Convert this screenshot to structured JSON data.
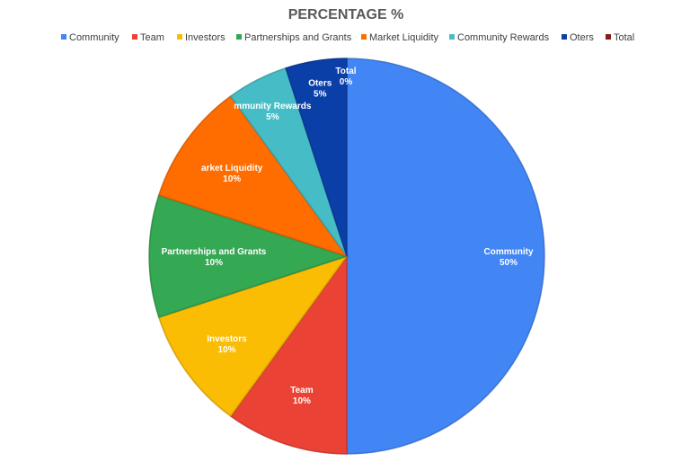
{
  "chart_data": {
    "type": "pie",
    "title": "PERCENTAGE  %",
    "legend_position": "top",
    "categories": [
      "Community",
      "Team",
      "Investors",
      "Partnerships and Grants",
      "Market Liquidity",
      "Community Rewards",
      "Oters",
      "Total"
    ],
    "values": [
      50,
      10,
      10,
      10,
      10,
      5,
      5,
      0
    ],
    "value_labels": [
      "50%",
      "10%",
      "10%",
      "10%",
      "10%",
      "5%",
      "5%",
      "0%"
    ],
    "slice_label_names": [
      "Community",
      "Team",
      "Investors",
      "Partnerships and Grants",
      "arket Liquidity",
      "mmunity Rewards",
      "Oters",
      "Total"
    ],
    "colors": [
      "#4285f4",
      "#ea4335",
      "#fbbc04",
      "#34a853",
      "#ff6d01",
      "#46bdc6",
      "#0b3fa8",
      "#8b1a1a"
    ]
  }
}
